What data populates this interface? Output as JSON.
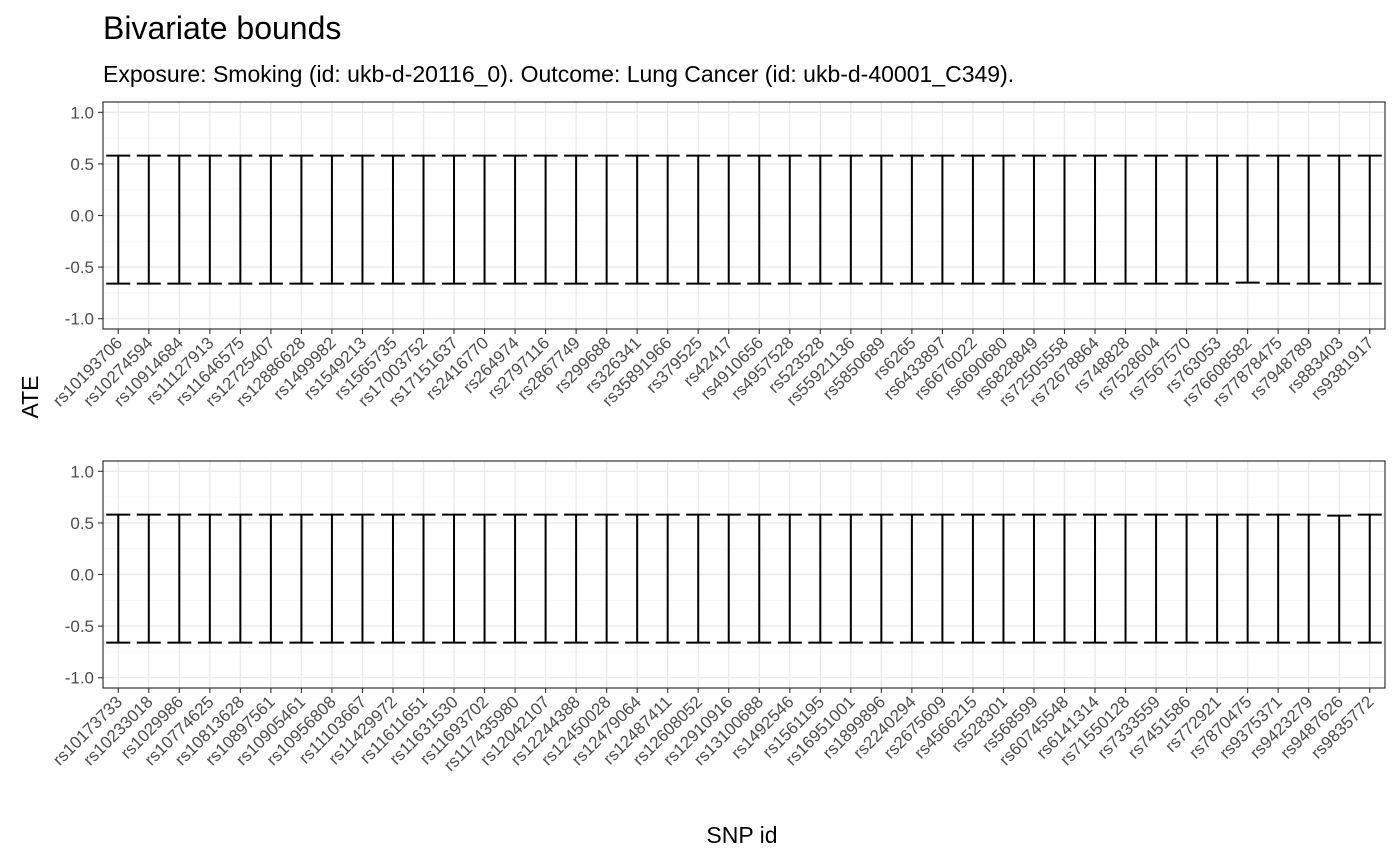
{
  "title": "Bivariate bounds",
  "subtitle": "Exposure: Smoking (id: ukb-d-20116_0). Outcome: Lung Cancer (id: ukb-d-40001_C349).",
  "chart_data": [
    {
      "type": "errorbar",
      "ylabel": "ATE",
      "xlabel": "",
      "ylim": [
        -1.1,
        1.1
      ],
      "yticks": [
        "-1.0",
        "-0.5",
        "0.0",
        "0.5",
        "1.0"
      ],
      "categories": [
        "rs10193706",
        "rs10274594",
        "rs10914684",
        "rs11127913",
        "rs11646575",
        "rs12725407",
        "rs12886628",
        "rs1499982",
        "rs1549213",
        "rs1565735",
        "rs17003752",
        "rs17151637",
        "rs2416770",
        "rs264974",
        "rs2797116",
        "rs2867749",
        "rs299688",
        "rs326341",
        "rs35891966",
        "rs379525",
        "rs42417",
        "rs4910656",
        "rs4957528",
        "rs523528",
        "rs55921136",
        "rs5850689",
        "rs6265",
        "rs6433897",
        "rs6676022",
        "rs6690680",
        "rs6828849",
        "rs72505558",
        "rs72678864",
        "rs748828",
        "rs7528604",
        "rs7567570",
        "rs763053",
        "rs76608582",
        "rs77878475",
        "rs7948789",
        "rs883403",
        "rs9381917"
      ],
      "lower": [
        -0.66,
        -0.66,
        -0.66,
        -0.66,
        -0.66,
        -0.66,
        -0.66,
        -0.66,
        -0.66,
        -0.66,
        -0.66,
        -0.66,
        -0.66,
        -0.66,
        -0.66,
        -0.66,
        -0.66,
        -0.66,
        -0.66,
        -0.66,
        -0.66,
        -0.66,
        -0.66,
        -0.66,
        -0.66,
        -0.66,
        -0.66,
        -0.66,
        -0.66,
        -0.66,
        -0.66,
        -0.66,
        -0.66,
        -0.66,
        -0.66,
        -0.66,
        -0.66,
        -0.65,
        -0.66,
        -0.66,
        -0.66,
        -0.66
      ],
      "upper": [
        0.58,
        0.58,
        0.58,
        0.58,
        0.58,
        0.58,
        0.58,
        0.58,
        0.58,
        0.58,
        0.58,
        0.58,
        0.58,
        0.58,
        0.58,
        0.58,
        0.58,
        0.58,
        0.58,
        0.58,
        0.58,
        0.58,
        0.58,
        0.58,
        0.58,
        0.58,
        0.58,
        0.58,
        0.58,
        0.58,
        0.58,
        0.58,
        0.58,
        0.58,
        0.58,
        0.58,
        0.58,
        0.58,
        0.58,
        0.58,
        0.58,
        0.58
      ]
    },
    {
      "type": "errorbar",
      "ylabel": "",
      "xlabel": "SNP id",
      "ylim": [
        -1.1,
        1.1
      ],
      "yticks": [
        "-1.0",
        "-0.5",
        "0.0",
        "0.5",
        "1.0"
      ],
      "categories": [
        "rs10173733",
        "rs10233018",
        "rs1029986",
        "rs10774625",
        "rs10813628",
        "rs10897561",
        "rs10905461",
        "rs10956808",
        "rs11103667",
        "rs11429972",
        "rs11611651",
        "rs11631530",
        "rs11693702",
        "rs117435980",
        "rs12042107",
        "rs12244388",
        "rs12450028",
        "rs12479064",
        "rs12487411",
        "rs12608052",
        "rs12910916",
        "rs13100688",
        "rs1492546",
        "rs1561195",
        "rs16951001",
        "rs1899896",
        "rs2240294",
        "rs2675609",
        "rs4566215",
        "rs528301",
        "rs568599",
        "rs60745548",
        "rs6141314",
        "rs71550128",
        "rs7333559",
        "rs7451586",
        "rs772921",
        "rs7870475",
        "rs9375371",
        "rs9423279",
        "rs9487626",
        "rs9835772"
      ],
      "lower": [
        -0.66,
        -0.66,
        -0.66,
        -0.66,
        -0.66,
        -0.66,
        -0.66,
        -0.66,
        -0.66,
        -0.66,
        -0.66,
        -0.66,
        -0.66,
        -0.66,
        -0.66,
        -0.66,
        -0.66,
        -0.66,
        -0.66,
        -0.66,
        -0.66,
        -0.66,
        -0.66,
        -0.66,
        -0.66,
        -0.66,
        -0.66,
        -0.66,
        -0.66,
        -0.66,
        -0.66,
        -0.66,
        -0.66,
        -0.66,
        -0.66,
        -0.66,
        -0.66,
        -0.66,
        -0.66,
        -0.66,
        -0.66,
        -0.66
      ],
      "upper": [
        0.58,
        0.58,
        0.58,
        0.58,
        0.58,
        0.58,
        0.58,
        0.58,
        0.58,
        0.58,
        0.58,
        0.58,
        0.58,
        0.58,
        0.58,
        0.58,
        0.58,
        0.58,
        0.58,
        0.58,
        0.58,
        0.58,
        0.58,
        0.58,
        0.58,
        0.58,
        0.58,
        0.58,
        0.58,
        0.58,
        0.58,
        0.58,
        0.58,
        0.58,
        0.58,
        0.58,
        0.58,
        0.58,
        0.58,
        0.58,
        0.57,
        0.58
      ]
    }
  ],
  "grid": true
}
